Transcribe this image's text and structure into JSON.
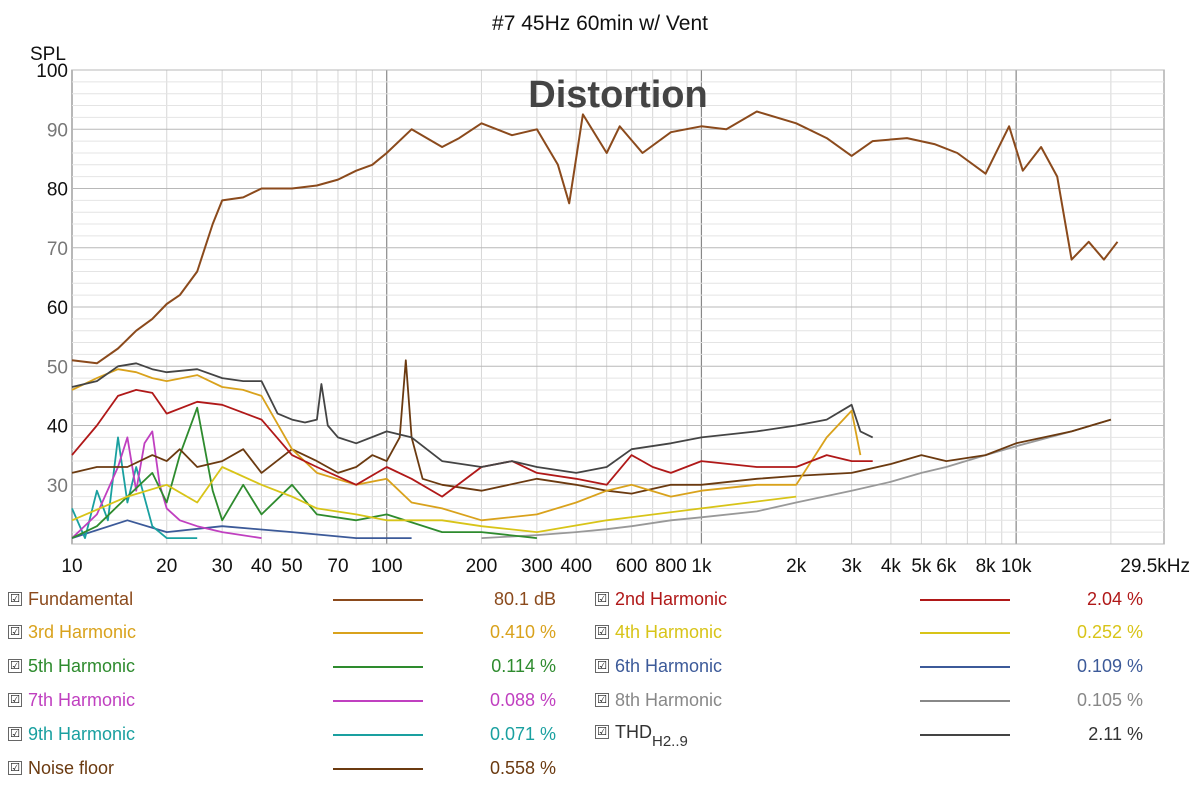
{
  "chart_data": {
    "type": "line",
    "title": "#7 45Hz 60min w/ Vent",
    "watermark": "Distortion",
    "ylabel": "SPL",
    "xscale": "log",
    "xlim": [
      10,
      29500
    ],
    "ylim": [
      20,
      100
    ],
    "grid": true,
    "xticks": [
      {
        "v": 10,
        "label": "10"
      },
      {
        "v": 20,
        "label": "20"
      },
      {
        "v": 30,
        "label": "30"
      },
      {
        "v": 40,
        "label": "40"
      },
      {
        "v": 50,
        "label": "50"
      },
      {
        "v": 70,
        "label": "70"
      },
      {
        "v": 100,
        "label": "100"
      },
      {
        "v": 200,
        "label": "200"
      },
      {
        "v": 300,
        "label": "300"
      },
      {
        "v": 400,
        "label": "400"
      },
      {
        "v": 600,
        "label": "600"
      },
      {
        "v": 800,
        "label": "800"
      },
      {
        "v": 1000,
        "label": "1k"
      },
      {
        "v": 2000,
        "label": "2k"
      },
      {
        "v": 3000,
        "label": "3k"
      },
      {
        "v": 4000,
        "label": "4k"
      },
      {
        "v": 5000,
        "label": "5k"
      },
      {
        "v": 6000,
        "label": "6k"
      },
      {
        "v": 8000,
        "label": "8k"
      },
      {
        "v": 10000,
        "label": "10k"
      },
      {
        "v": 29500,
        "label": "29.5kHz"
      }
    ],
    "yticks": [
      {
        "v": 30,
        "label": "30"
      },
      {
        "v": 40,
        "label": "40"
      },
      {
        "v": 50,
        "label": "50"
      },
      {
        "v": 60,
        "label": "60"
      },
      {
        "v": 70,
        "label": "70"
      },
      {
        "v": 80,
        "label": "80"
      },
      {
        "v": 90,
        "label": "90"
      },
      {
        "v": 100,
        "label": "100"
      }
    ],
    "series": [
      {
        "name": "Fundamental",
        "color": "#8B4A1C",
        "value": "80.1 dB",
        "x": [
          10,
          12,
          14,
          16,
          18,
          20,
          22,
          25,
          28,
          30,
          35,
          40,
          50,
          60,
          70,
          80,
          90,
          100,
          120,
          150,
          170,
          200,
          250,
          300,
          350,
          380,
          420,
          500,
          550,
          650,
          800,
          1000,
          1200,
          1500,
          2000,
          2500,
          3000,
          3500,
          4500,
          5500,
          6500,
          8000,
          9500,
          10500,
          12000,
          13500,
          15000,
          17000,
          19000,
          21000
        ],
        "y": [
          51,
          50.5,
          53,
          56,
          58,
          60.5,
          62,
          66,
          74,
          78,
          78.5,
          80,
          80,
          80.5,
          81.5,
          83,
          84,
          86,
          90,
          87,
          88.5,
          91,
          89,
          90,
          84,
          77.5,
          92.5,
          86,
          90.5,
          86,
          89.5,
          90.5,
          90,
          93,
          91,
          88.5,
          85.5,
          88,
          88.5,
          87.5,
          86,
          82.5,
          90.5,
          83,
          87,
          82,
          68,
          71,
          68,
          71
        ]
      },
      {
        "name": "2nd Harmonic",
        "color": "#B01818",
        "value": "2.04 %",
        "x": [
          10,
          12,
          14,
          16,
          18,
          20,
          25,
          30,
          40,
          50,
          60,
          80,
          100,
          120,
          150,
          200,
          250,
          300,
          400,
          500,
          600,
          700,
          800,
          1000,
          1500,
          2000,
          2500,
          3000,
          3500
        ],
        "y": [
          35,
          40,
          45,
          46,
          45.5,
          42,
          44,
          43.5,
          41,
          35,
          33,
          30,
          33,
          31,
          28,
          33,
          34,
          32,
          31,
          30,
          35,
          33,
          32,
          34,
          33,
          33,
          35,
          34,
          34
        ]
      },
      {
        "name": "3rd Harmonic",
        "color": "#D9A21C",
        "value": "0.410 %",
        "x": [
          10,
          12,
          14,
          16,
          18,
          20,
          25,
          30,
          35,
          40,
          50,
          60,
          80,
          100,
          120,
          150,
          200,
          300,
          400,
          500,
          600,
          800,
          1000,
          1500,
          2000,
          2500,
          3000,
          3200
        ],
        "y": [
          46,
          48,
          49.5,
          49,
          48,
          47.5,
          48.5,
          46.5,
          46,
          45,
          36,
          32,
          30,
          31,
          27,
          26,
          24,
          25,
          27,
          29,
          30,
          28,
          29,
          30,
          30,
          38,
          42.5,
          35
        ]
      },
      {
        "name": "4th Harmonic",
        "color": "#D8C418",
        "value": "0.252 %",
        "x": [
          10,
          15,
          20,
          25,
          30,
          40,
          50,
          60,
          80,
          100,
          150,
          200,
          300,
          500,
          1000,
          2000
        ],
        "y": [
          24,
          28,
          30,
          27,
          33,
          30,
          28,
          26,
          25,
          24,
          24,
          23,
          22,
          24,
          26,
          28
        ]
      },
      {
        "name": "5th Harmonic",
        "color": "#2E8B2E",
        "value": "0.114 %",
        "x": [
          10,
          12,
          15,
          18,
          20,
          22,
          25,
          28,
          30,
          35,
          40,
          50,
          60,
          80,
          100,
          150,
          200,
          300
        ],
        "y": [
          21,
          23,
          28,
          32,
          27,
          35,
          43,
          29,
          24,
          30,
          25,
          30,
          25,
          24,
          25,
          22,
          22,
          21
        ]
      },
      {
        "name": "6th Harmonic",
        "color": "#3C5A99",
        "value": "0.109 %",
        "x": [
          10,
          15,
          20,
          30,
          50,
          80,
          120
        ],
        "y": [
          21,
          24,
          22,
          23,
          22,
          21,
          21
        ]
      },
      {
        "name": "7th Harmonic",
        "color": "#C040C0",
        "value": "0.088 %",
        "x": [
          10,
          12,
          14,
          15,
          16,
          17,
          18,
          19,
          20,
          22,
          25,
          30,
          40
        ],
        "y": [
          21,
          25,
          33,
          38,
          29,
          37,
          39,
          30,
          26,
          24,
          23,
          22,
          21
        ]
      },
      {
        "name": "8th Harmonic",
        "color": "#999999",
        "value": "0.105 %",
        "x": [
          200,
          300,
          400,
          500,
          600,
          800,
          1000,
          1500,
          2000,
          3000,
          4000,
          5000,
          6000,
          8000,
          10000,
          15000,
          20000
        ],
        "y": [
          21,
          21.5,
          22,
          22.5,
          23,
          24,
          24.5,
          25.5,
          27,
          29,
          30.5,
          32,
          33,
          35,
          36.5,
          39,
          41
        ]
      },
      {
        "name": "9th Harmonic",
        "color": "#1AA0A0",
        "value": "0.071 %",
        "x": [
          10,
          11,
          12,
          13,
          14,
          15,
          16,
          18,
          20,
          25
        ],
        "y": [
          26,
          21,
          29,
          24,
          38,
          27,
          33,
          23,
          21,
          21
        ]
      },
      {
        "name": "THD_H2..9",
        "color": "#444444",
        "value": "2.11 %",
        "x": [
          10,
          12,
          14,
          16,
          18,
          20,
          25,
          30,
          35,
          40,
          45,
          50,
          55,
          60,
          62,
          65,
          70,
          80,
          100,
          120,
          150,
          200,
          250,
          300,
          400,
          500,
          600,
          800,
          1000,
          1500,
          2000,
          2500,
          3000,
          3200,
          3500
        ],
        "y": [
          46.5,
          47.5,
          50,
          50.5,
          49.5,
          49,
          49.5,
          48,
          47.5,
          47.5,
          42,
          41,
          40.5,
          41,
          47,
          40,
          38,
          37,
          39,
          38,
          34,
          33,
          34,
          33,
          32,
          33,
          36,
          37,
          38,
          39,
          40,
          41,
          43.5,
          39,
          38
        ]
      },
      {
        "name": "Noise floor",
        "color": "#6B3A10",
        "value": "0.558 %",
        "x": [
          10,
          12,
          15,
          18,
          20,
          22,
          25,
          30,
          35,
          40,
          50,
          60,
          70,
          80,
          90,
          100,
          110,
          115,
          120,
          130,
          150,
          200,
          300,
          400,
          500,
          600,
          800,
          1000,
          1500,
          2000,
          3000,
          4000,
          5000,
          6000,
          8000,
          10000,
          15000,
          20000
        ],
        "y": [
          32,
          33,
          33,
          35,
          34,
          36,
          33,
          34,
          36,
          32,
          36,
          34,
          32,
          33,
          35,
          34,
          38,
          51,
          38,
          31,
          30,
          29,
          31,
          30,
          29,
          28.5,
          30,
          30,
          31,
          31.5,
          32,
          33.5,
          35,
          34,
          35,
          37,
          39,
          41
        ]
      }
    ]
  },
  "legend": {
    "fundamental": {
      "name": "Fundamental",
      "value": "80.1 dB",
      "color": "#8B4A1C"
    },
    "h2": {
      "name": "2nd Harmonic",
      "value": "2.04 %",
      "color": "#B01818"
    },
    "h3": {
      "name": "3rd Harmonic",
      "value": "0.410 %",
      "color": "#D9A21C"
    },
    "h4": {
      "name": "4th Harmonic",
      "value": "0.252 %",
      "color": "#D8C418"
    },
    "h5": {
      "name": "5th Harmonic",
      "value": "0.114 %",
      "color": "#2E8B2E"
    },
    "h6": {
      "name": "6th Harmonic",
      "value": "0.109 %",
      "color": "#3C5A99"
    },
    "h7": {
      "name": "7th Harmonic",
      "value": "0.088 %",
      "color": "#C040C0"
    },
    "h8": {
      "name": "8th Harmonic",
      "value": "0.105 %",
      "color": "#999999"
    },
    "h9": {
      "name": "9th Harmonic",
      "value": "0.071 %",
      "color": "#1AA0A0"
    },
    "thd": {
      "name": "THD",
      "sub": "H2..9",
      "value": "2.11 %",
      "color": "#444444"
    },
    "noise": {
      "name": "Noise floor",
      "value": "0.558 %",
      "color": "#6B3A10"
    },
    "checkmark": "☑"
  }
}
